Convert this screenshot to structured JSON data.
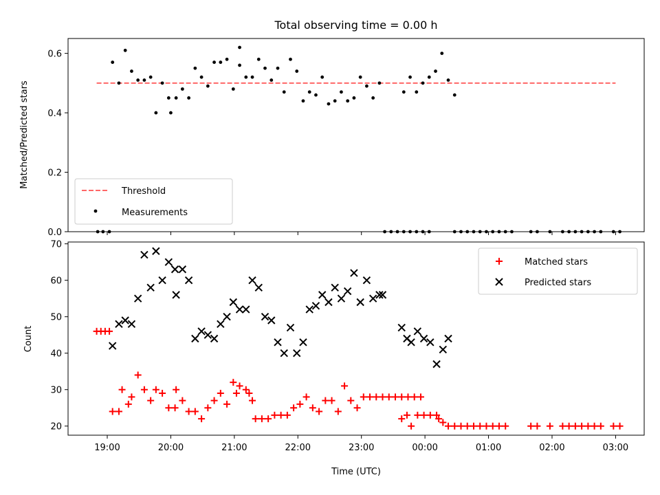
{
  "chart_data": [
    {
      "panel": "top",
      "type": "scatter",
      "title": "Total observing time = 0.00 h",
      "ylabel": "Matched/Predicted stars",
      "ylim": [
        0,
        0.65
      ],
      "yticks": [
        0.0,
        0.2,
        0.4,
        0.6
      ],
      "ytick_labels": [
        "0.0",
        "0.2",
        "0.4",
        "0.6"
      ],
      "xlim": [
        "18:23",
        "03:27"
      ],
      "legend_position": "lower-left",
      "threshold": {
        "name": "Threshold",
        "value": 0.5,
        "x_range": [
          "18:50",
          "03:00"
        ],
        "color": "#ff6666",
        "style": "dashed"
      },
      "series": [
        {
          "name": "Measurements",
          "color": "#000000",
          "marker": "dot",
          "points": [
            [
              "18:51",
              0.0
            ],
            [
              "18:56",
              0.0
            ],
            [
              "19:02",
              0.0
            ],
            [
              "19:05",
              0.57
            ],
            [
              "19:11",
              0.5
            ],
            [
              "19:17",
              0.61
            ],
            [
              "19:23",
              0.54
            ],
            [
              "19:29",
              0.51
            ],
            [
              "19:35",
              0.51
            ],
            [
              "19:41",
              0.52
            ],
            [
              "19:46",
              0.4
            ],
            [
              "19:52",
              0.5
            ],
            [
              "19:58",
              0.45
            ],
            [
              "20:00",
              0.4
            ],
            [
              "20:05",
              0.45
            ],
            [
              "20:11",
              0.48
            ],
            [
              "20:17",
              0.45
            ],
            [
              "20:23",
              0.55
            ],
            [
              "20:29",
              0.52
            ],
            [
              "20:35",
              0.49
            ],
            [
              "20:41",
              0.57
            ],
            [
              "20:47",
              0.57
            ],
            [
              "20:53",
              0.58
            ],
            [
              "20:59",
              0.48
            ],
            [
              "20:65",
              0.62
            ],
            [
              "21:05",
              0.56
            ],
            [
              "21:11",
              0.52
            ],
            [
              "21:17",
              0.52
            ],
            [
              "21:23",
              0.58
            ],
            [
              "21:29",
              0.55
            ],
            [
              "21:35",
              0.51
            ],
            [
              "21:41",
              0.55
            ],
            [
              "21:47",
              0.47
            ],
            [
              "21:53",
              0.58
            ],
            [
              "21:59",
              0.54
            ],
            [
              "22:05",
              0.44
            ],
            [
              "22:11",
              0.47
            ],
            [
              "22:17",
              0.46
            ],
            [
              "22:23",
              0.52
            ],
            [
              "22:29",
              0.43
            ],
            [
              "22:35",
              0.44
            ],
            [
              "22:41",
              0.47
            ],
            [
              "22:47",
              0.44
            ],
            [
              "22:53",
              0.45
            ],
            [
              "22:59",
              0.52
            ],
            [
              "23:05",
              0.49
            ],
            [
              "23:11",
              0.45
            ],
            [
              "23:17",
              0.5
            ],
            [
              "23:22",
              0.0
            ],
            [
              "23:28",
              0.0
            ],
            [
              "23:34",
              0.0
            ],
            [
              "23:40",
              0.0
            ],
            [
              "23:46",
              0.0
            ],
            [
              "23:52",
              0.0
            ],
            [
              "23:58",
              0.0
            ],
            [
              "00:04",
              0.0
            ],
            [
              "23:40",
              0.47
            ],
            [
              "23:46",
              0.52
            ],
            [
              "23:52",
              0.47
            ],
            [
              "23:58",
              0.5
            ],
            [
              "00:04",
              0.52
            ],
            [
              "00:10",
              0.54
            ],
            [
              "00:16",
              0.6
            ],
            [
              "00:22",
              0.51
            ],
            [
              "00:28",
              0.46
            ],
            [
              "00:28",
              0.0
            ],
            [
              "00:34",
              0.0
            ],
            [
              "00:40",
              0.0
            ],
            [
              "00:46",
              0.0
            ],
            [
              "00:52",
              0.0
            ],
            [
              "00:58",
              0.0
            ],
            [
              "01:04",
              0.0
            ],
            [
              "01:10",
              0.0
            ],
            [
              "01:16",
              0.0
            ],
            [
              "01:22",
              0.0
            ],
            [
              "01:40",
              0.0
            ],
            [
              "01:46",
              0.0
            ],
            [
              "01:58",
              0.0
            ],
            [
              "02:10",
              0.0
            ],
            [
              "02:16",
              0.0
            ],
            [
              "02:22",
              0.0
            ],
            [
              "02:28",
              0.0
            ],
            [
              "02:34",
              0.0
            ],
            [
              "02:40",
              0.0
            ],
            [
              "02:46",
              0.0
            ],
            [
              "02:58",
              0.0
            ],
            [
              "03:04",
              0.0
            ]
          ]
        }
      ]
    },
    {
      "panel": "bottom",
      "type": "scatter",
      "xlabel": "Time (UTC)",
      "ylabel": "Count",
      "ylim": [
        17.5,
        70.5
      ],
      "yticks": [
        20,
        30,
        40,
        50,
        60,
        70
      ],
      "ytick_labels": [
        "20",
        "30",
        "40",
        "50",
        "60",
        "70"
      ],
      "xlim": [
        "18:23",
        "03:27"
      ],
      "xticks": [
        "19:00",
        "20:00",
        "21:00",
        "22:00",
        "23:00",
        "00:00",
        "01:00",
        "02:00",
        "03:00"
      ],
      "legend_position": "top-right",
      "series": [
        {
          "name": "Matched stars",
          "color": "#ff0000",
          "marker": "plus",
          "points": [
            [
              "18:50",
              46
            ],
            [
              "18:54",
              46
            ],
            [
              "18:58",
              46
            ],
            [
              "19:02",
              46
            ],
            [
              "19:05",
              24
            ],
            [
              "19:11",
              24
            ],
            [
              "19:14",
              30
            ],
            [
              "19:20",
              26
            ],
            [
              "19:23",
              28
            ],
            [
              "19:29",
              34
            ],
            [
              "19:35",
              30
            ],
            [
              "19:41",
              27
            ],
            [
              "19:46",
              30
            ],
            [
              "19:52",
              29
            ],
            [
              "19:58",
              25
            ],
            [
              "20:04",
              25
            ],
            [
              "20:05",
              30
            ],
            [
              "20:11",
              27
            ],
            [
              "20:17",
              24
            ],
            [
              "20:23",
              24
            ],
            [
              "20:29",
              22
            ],
            [
              "20:35",
              25
            ],
            [
              "20:41",
              27
            ],
            [
              "20:47",
              29
            ],
            [
              "20:53",
              26
            ],
            [
              "20:59",
              32
            ],
            [
              "21:02",
              29
            ],
            [
              "21:05",
              31
            ],
            [
              "21:11",
              30
            ],
            [
              "21:14",
              29
            ],
            [
              "21:17",
              27
            ],
            [
              "21:20",
              22
            ],
            [
              "21:26",
              22
            ],
            [
              "21:32",
              22
            ],
            [
              "21:38",
              23
            ],
            [
              "21:44",
              23
            ],
            [
              "21:50",
              23
            ],
            [
              "21:56",
              25
            ],
            [
              "22:02",
              26
            ],
            [
              "22:08",
              28
            ],
            [
              "22:14",
              25
            ],
            [
              "22:20",
              24
            ],
            [
              "22:26",
              27
            ],
            [
              "22:32",
              27
            ],
            [
              "22:38",
              24
            ],
            [
              "22:44",
              31
            ],
            [
              "22:50",
              27
            ],
            [
              "22:56",
              25
            ],
            [
              "23:02",
              28
            ],
            [
              "23:08",
              28
            ],
            [
              "23:14",
              28
            ],
            [
              "23:20",
              28
            ],
            [
              "23:26",
              28
            ],
            [
              "23:32",
              28
            ],
            [
              "23:38",
              28
            ],
            [
              "23:44",
              28
            ],
            [
              "23:50",
              28
            ],
            [
              "23:56",
              28
            ],
            [
              "23:38",
              22
            ],
            [
              "23:43",
              23
            ],
            [
              "23:47",
              20
            ],
            [
              "23:53",
              23
            ],
            [
              "23:59",
              23
            ],
            [
              "00:05",
              23
            ],
            [
              "00:11",
              23
            ],
            [
              "00:13",
              22
            ],
            [
              "00:17",
              21
            ],
            [
              "00:22",
              20
            ],
            [
              "00:28",
              20
            ],
            [
              "00:34",
              20
            ],
            [
              "00:40",
              20
            ],
            [
              "00:46",
              20
            ],
            [
              "00:52",
              20
            ],
            [
              "00:58",
              20
            ],
            [
              "01:04",
              20
            ],
            [
              "01:10",
              20
            ],
            [
              "01:16",
              20
            ],
            [
              "01:40",
              20
            ],
            [
              "01:46",
              20
            ],
            [
              "01:58",
              20
            ],
            [
              "02:10",
              20
            ],
            [
              "02:16",
              20
            ],
            [
              "02:22",
              20
            ],
            [
              "02:28",
              20
            ],
            [
              "02:34",
              20
            ],
            [
              "02:40",
              20
            ],
            [
              "02:46",
              20
            ],
            [
              "02:58",
              20
            ],
            [
              "03:04",
              20
            ]
          ]
        },
        {
          "name": "Predicted stars",
          "color": "#000000",
          "marker": "x",
          "points": [
            [
              "19:05",
              42
            ],
            [
              "19:11",
              48
            ],
            [
              "19:17",
              49
            ],
            [
              "19:23",
              48
            ],
            [
              "19:29",
              55
            ],
            [
              "19:35",
              67
            ],
            [
              "19:41",
              58
            ],
            [
              "19:46",
              68
            ],
            [
              "19:52",
              60
            ],
            [
              "19:58",
              65
            ],
            [
              "20:04",
              63
            ],
            [
              "20:05",
              56
            ],
            [
              "20:11",
              63
            ],
            [
              "20:17",
              60
            ],
            [
              "20:23",
              44
            ],
            [
              "20:29",
              46
            ],
            [
              "20:35",
              45
            ],
            [
              "20:41",
              44
            ],
            [
              "20:47",
              48
            ],
            [
              "20:53",
              50
            ],
            [
              "20:59",
              54
            ],
            [
              "21:05",
              52
            ],
            [
              "21:11",
              52
            ],
            [
              "21:17",
              60
            ],
            [
              "21:23",
              58
            ],
            [
              "21:29",
              50
            ],
            [
              "21:35",
              49
            ],
            [
              "21:41",
              43
            ],
            [
              "21:47",
              40
            ],
            [
              "21:53",
              47
            ],
            [
              "21:59",
              40
            ],
            [
              "22:05",
              43
            ],
            [
              "22:11",
              52
            ],
            [
              "22:17",
              53
            ],
            [
              "22:23",
              56
            ],
            [
              "22:29",
              54
            ],
            [
              "22:35",
              58
            ],
            [
              "22:41",
              55
            ],
            [
              "22:47",
              57
            ],
            [
              "22:53",
              62
            ],
            [
              "22:59",
              54
            ],
            [
              "23:05",
              60
            ],
            [
              "23:11",
              55
            ],
            [
              "23:17",
              56
            ],
            [
              "23:20",
              56
            ],
            [
              "23:38",
              47
            ],
            [
              "23:43",
              44
            ],
            [
              "23:47",
              43
            ],
            [
              "23:53",
              46
            ],
            [
              "23:59",
              44
            ],
            [
              "00:05",
              43
            ],
            [
              "00:11",
              37
            ],
            [
              "00:17",
              41
            ],
            [
              "00:22",
              44
            ]
          ]
        }
      ]
    }
  ]
}
